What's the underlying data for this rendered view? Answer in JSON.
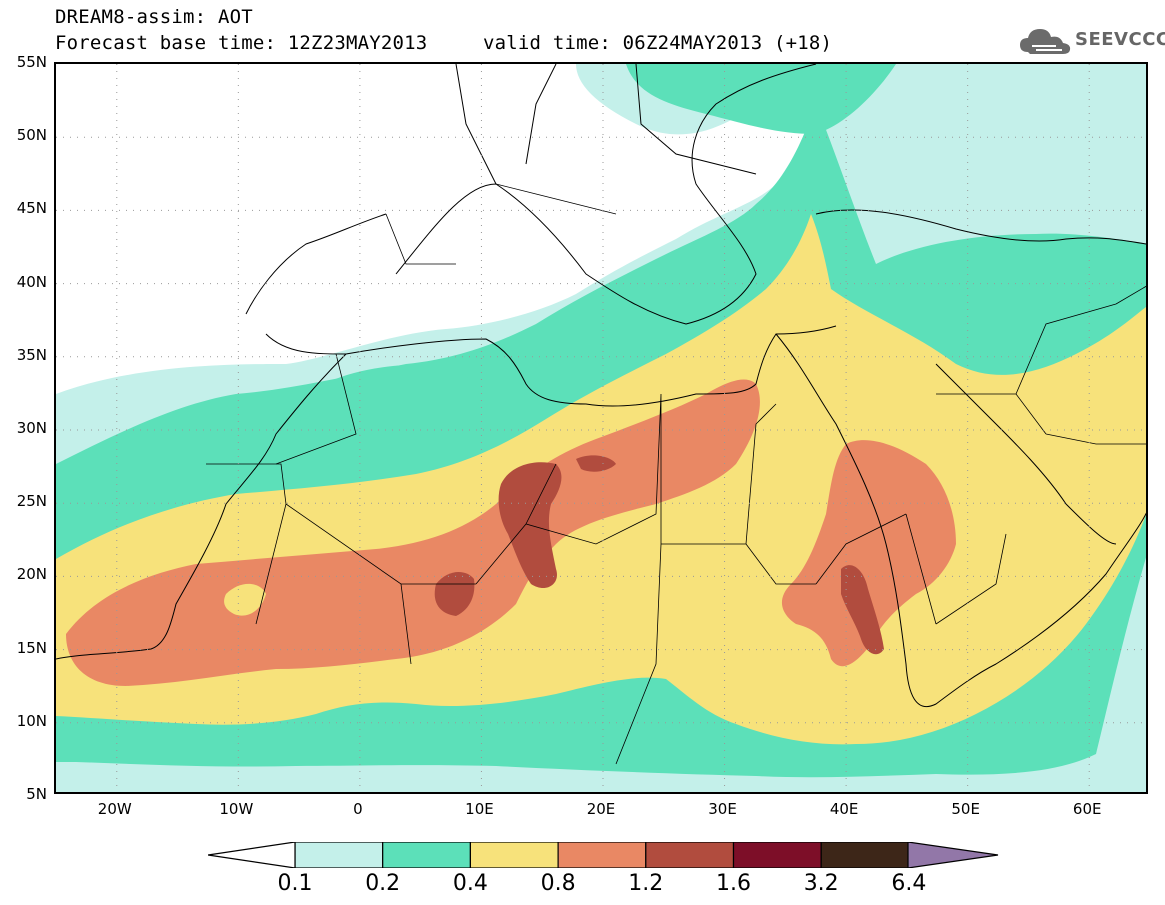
{
  "header": {
    "title_line1": "DREAM8-assim: AOT",
    "base_time": "Forecast base time: 12Z23MAY2013",
    "valid_time": "valid time: 06Z24MAY2013 (+18)",
    "logo_text": "SEEVCCC"
  },
  "axes": {
    "lat_labels": [
      "55N",
      "50N",
      "45N",
      "40N",
      "35N",
      "30N",
      "25N",
      "20N",
      "15N",
      "10N",
      "5N"
    ],
    "lon_labels": [
      "20W",
      "10W",
      "0",
      "10E",
      "20E",
      "30E",
      "40E",
      "50E",
      "60E"
    ]
  },
  "colorbar": {
    "labels": [
      "0.1",
      "0.2",
      "0.4",
      "0.8",
      "1.2",
      "1.6",
      "3.2",
      "6.4"
    ],
    "colors": [
      "#c4f0ea",
      "#5ce0b9",
      "#f7e27b",
      "#e98864",
      "#b14c3e",
      "#7d0e28",
      "#3d2618",
      "#9277a8"
    ]
  },
  "map": {
    "domain_lon": [
      -25,
      65
    ],
    "domain_lat": [
      5,
      55
    ],
    "variable": "Aerosol Optical Thickness"
  }
}
